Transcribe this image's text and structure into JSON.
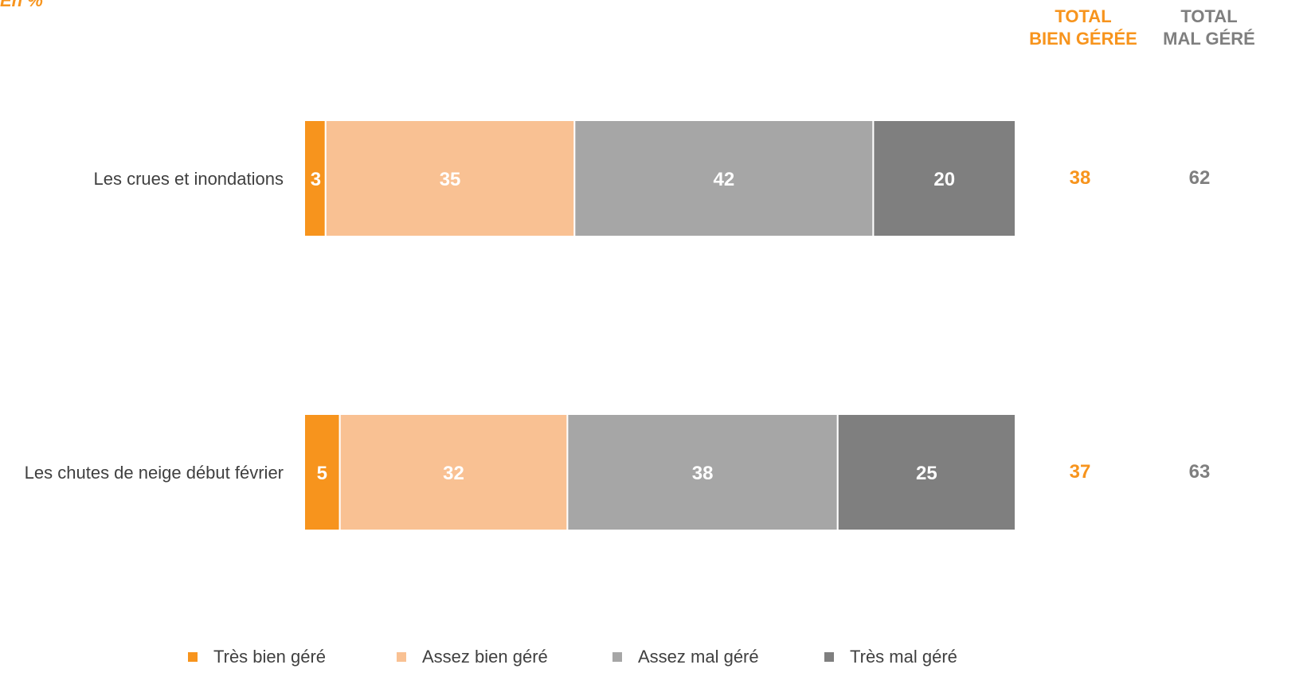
{
  "unit_label": "En %",
  "columns": {
    "total_bien": "TOTAL\nBIEN GÉRÉE",
    "total_mal": "TOTAL\nMAL GÉRÉ"
  },
  "colors": {
    "tres_bien": "#F7941D",
    "assez_bien": "#F9C193",
    "assez_mal": "#A6A6A6",
    "tres_mal": "#7F7F7F",
    "total_bien": "#F7941D",
    "total_mal": "#7F7F7F"
  },
  "chart_data": {
    "type": "bar",
    "orientation": "horizontal",
    "stacked": true,
    "categories": [
      "Les crues et inondations",
      "Les chutes de neige début février"
    ],
    "series": [
      {
        "name": "Très bien géré",
        "values": [
          3,
          5
        ]
      },
      {
        "name": "Assez bien géré",
        "values": [
          35,
          32
        ]
      },
      {
        "name": "Assez mal géré",
        "values": [
          42,
          38
        ]
      },
      {
        "name": "Très mal géré",
        "values": [
          20,
          25
        ]
      }
    ],
    "totals": {
      "total_bien": [
        38,
        37
      ],
      "total_mal": [
        62,
        63
      ]
    },
    "xlim": [
      0,
      100
    ],
    "grid": false,
    "legend": "bottom"
  }
}
